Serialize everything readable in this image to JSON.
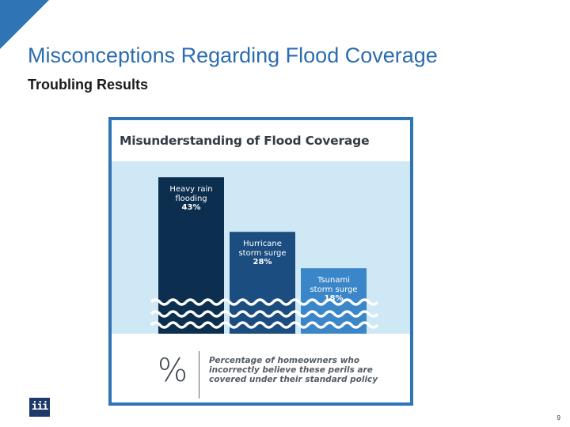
{
  "slide": {
    "title": "Misconceptions Regarding Flood Coverage",
    "subtitle": "Troubling Results",
    "page_number": "9",
    "logo_text": "iii",
    "accent_color": "#2f75b5"
  },
  "chart_data": {
    "type": "bar",
    "title": "Misunderstanding of Flood Coverage",
    "categories": [
      "Heavy rain flooding",
      "Hurricane storm surge",
      "Tsunami storm surge"
    ],
    "values": [
      43,
      28,
      18
    ],
    "value_labels": [
      "43%",
      "28%",
      "18%"
    ],
    "label_lines": [
      [
        "Heavy rain",
        "flooding"
      ],
      [
        "Hurricane",
        "storm surge"
      ],
      [
        "Tsunami",
        "storm surge"
      ]
    ],
    "bar_colors": [
      "#0d2f4f",
      "#1c4d80",
      "#3b86c8"
    ],
    "background_color": "#cfe8f5",
    "ylim": [
      0,
      50
    ],
    "grid": false,
    "legend_symbol": "%",
    "legend_text": "Percentage of homeowners who incorrectly believe these perils are covered under their standard policy"
  }
}
